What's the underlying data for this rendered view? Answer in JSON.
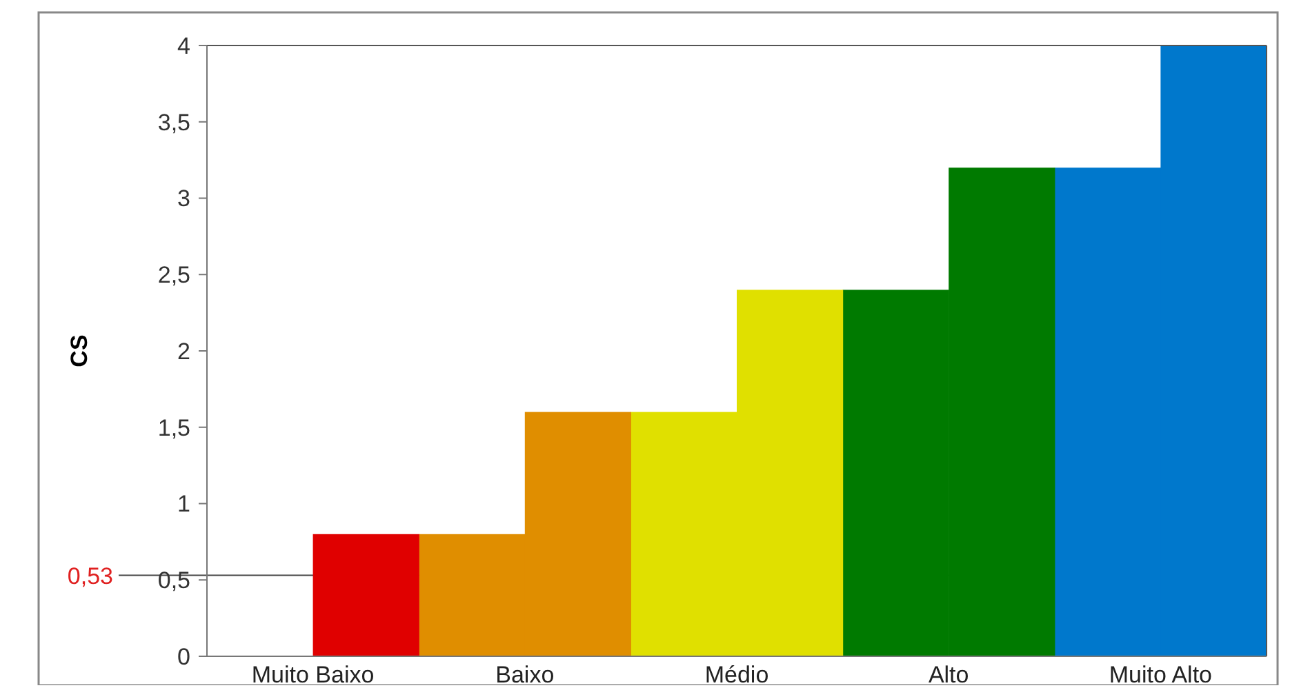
{
  "chart_data": {
    "type": "bar",
    "ylabel": "CS",
    "categories": [
      "Muito Baixo",
      "Baixo",
      "Médio",
      "Alto",
      "Muito Alto"
    ],
    "series": [
      {
        "values": [
          null,
          0.8,
          1.6,
          2.4,
          3.2
        ],
        "colors": [
          null,
          "#e08e00",
          "#e0e000",
          "#007a00",
          "#0078cc"
        ]
      },
      {
        "values": [
          0.8,
          1.6,
          2.4,
          3.2,
          4.0
        ],
        "colors": [
          "#e00000",
          "#e08e00",
          "#e0e000",
          "#007a00",
          "#0078cc"
        ]
      }
    ],
    "ylim": [
      0,
      4
    ],
    "yticks": [
      0,
      {
        "value": 0.5,
        "label": "0,5"
      },
      1,
      {
        "value": 1.5,
        "label": "1,5"
      },
      2,
      {
        "value": 2.5,
        "label": "2,5"
      },
      3,
      {
        "value": 3.5,
        "label": "3,5"
      },
      4
    ],
    "ref_lines": [
      {
        "axis": "y",
        "value": 0.53,
        "label": "0,53"
      }
    ]
  }
}
